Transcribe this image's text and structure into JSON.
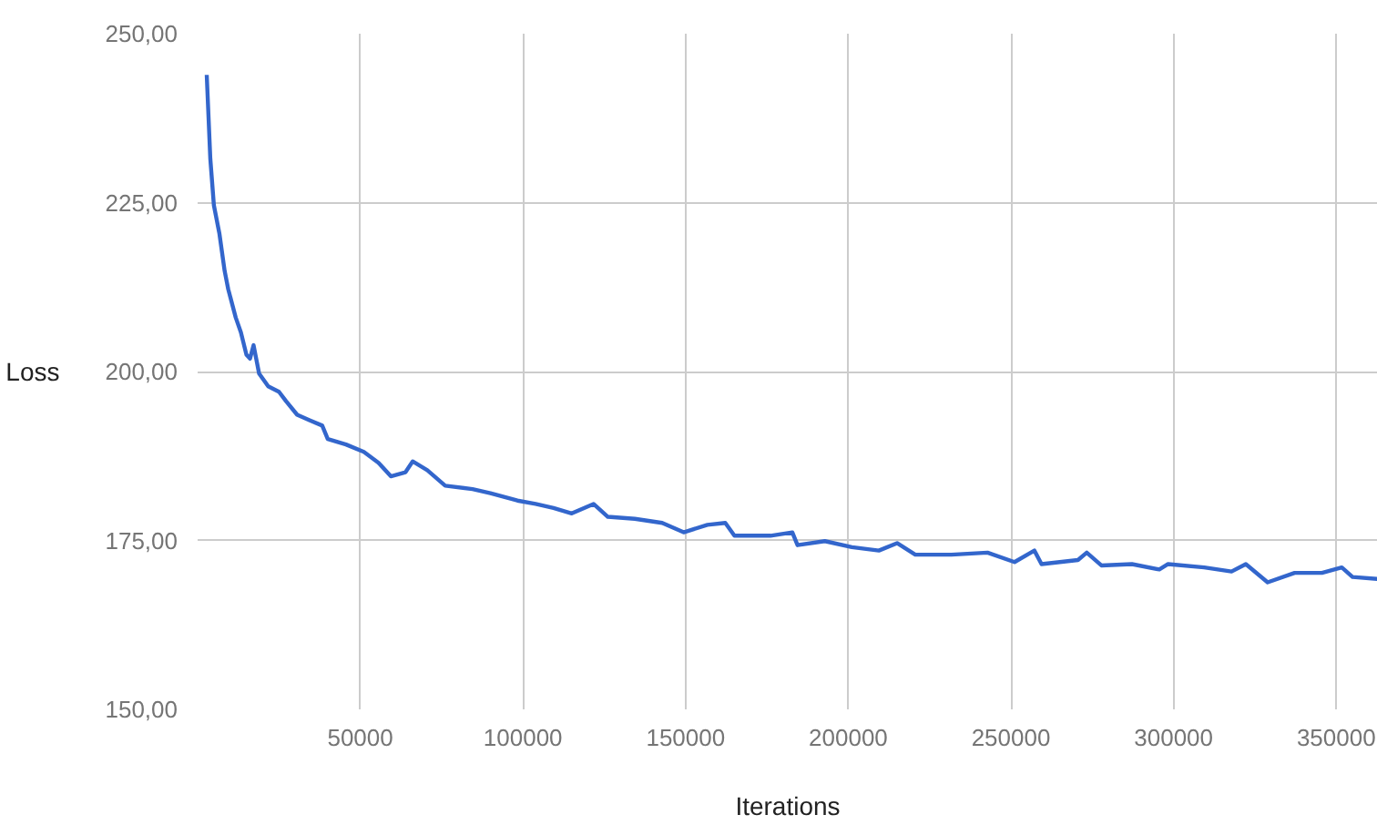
{
  "chart_data": {
    "type": "line",
    "xlabel": "Iterations",
    "ylabel": "Loss",
    "x": [
      2800,
      3900,
      5000,
      6700,
      8300,
      9400,
      11700,
      13300,
      15000,
      16100,
      17200,
      18900,
      21700,
      25000,
      27200,
      30600,
      34400,
      38300,
      40000,
      45600,
      51100,
      55600,
      59400,
      63900,
      66100,
      70600,
      76100,
      84500,
      90000,
      98300,
      103900,
      109400,
      115000,
      121700,
      126100,
      134400,
      142800,
      149400,
      156700,
      162200,
      165000,
      176100,
      182800,
      184400,
      192800,
      201100,
      209400,
      215000,
      220600,
      231700,
      242800,
      251100,
      257200,
      259400,
      270600,
      273300,
      277800,
      287200,
      295600,
      298300,
      309400,
      317800,
      322200,
      328900,
      337200,
      345600,
      351700,
      355000,
      362800
    ],
    "series": [
      {
        "color": "#3366cc",
        "values": [
          243.9,
          231.5,
          224.6,
          220.4,
          214.9,
          212.2,
          208.0,
          205.8,
          202.5,
          201.9,
          203.9,
          199.7,
          197.8,
          197.0,
          195.6,
          193.6,
          192.8,
          192.0,
          190.0,
          189.2,
          188.1,
          186.5,
          184.5,
          185.1,
          186.7,
          185.4,
          183.1,
          182.6,
          182.0,
          180.9,
          180.4,
          179.8,
          179.0,
          180.4,
          178.5,
          178.2,
          177.6,
          176.2,
          177.3,
          177.6,
          175.7,
          175.7,
          176.2,
          174.3,
          174.9,
          174.0,
          173.5,
          174.6,
          172.9,
          172.9,
          173.2,
          171.8,
          173.5,
          171.5,
          172.1,
          173.2,
          171.3,
          171.5,
          170.7,
          171.5,
          171.0,
          170.4,
          171.5,
          168.8,
          170.2,
          170.2,
          171.0,
          169.6,
          169.3
        ]
      }
    ],
    "xlim": [
      0,
      362800
    ],
    "ylim": [
      150,
      250
    ],
    "xticks": [
      50000,
      100000,
      150000,
      200000,
      250000,
      300000,
      350000
    ],
    "yticks": [
      {
        "value": 150,
        "label": "150,00"
      },
      {
        "value": 175,
        "label": "175,00"
      },
      {
        "value": 200,
        "label": "200,00"
      },
      {
        "value": 225,
        "label": "225,00"
      },
      {
        "value": 250,
        "label": "250,00"
      }
    ],
    "grid": true
  }
}
